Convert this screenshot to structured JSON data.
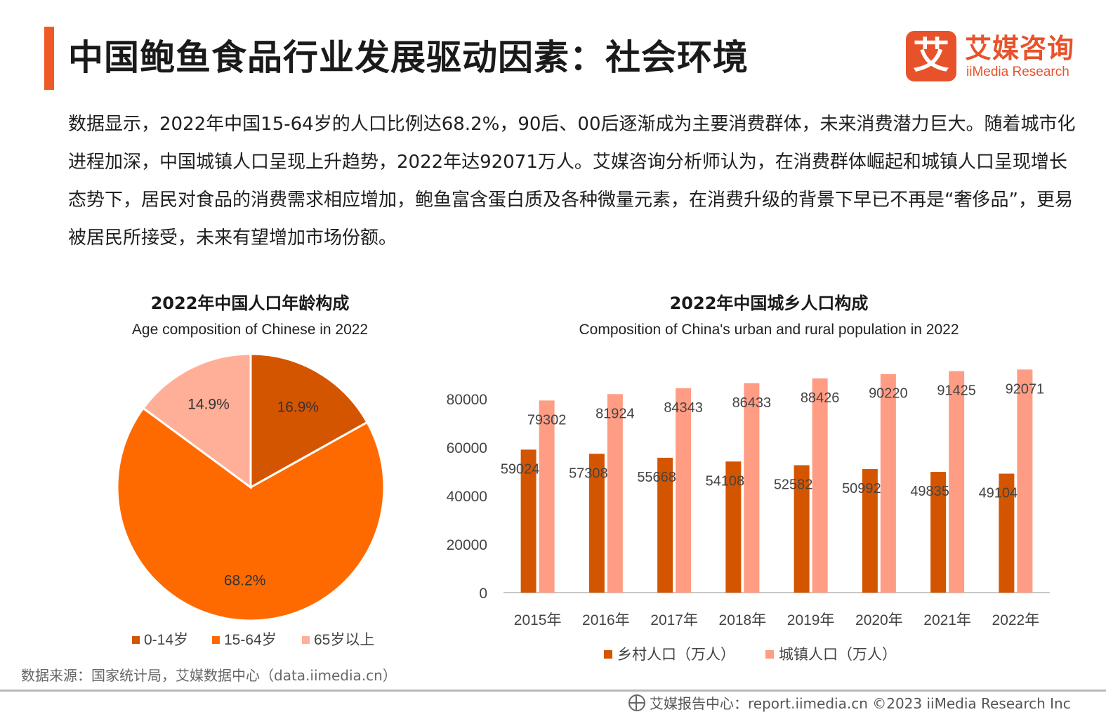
{
  "page": {
    "title": "中国鲍鱼食品行业发展驱动因素：社会环境",
    "logo_mark": "艾",
    "logo_cn": "艾媒咨询",
    "logo_en": "iiMedia Research",
    "body_text": "数据显示，2022年中国15-64岁的人口比例达68.2%，90后、00后逐渐成为主要消费群体，未来消费潜力巨大。随着城市化进程加深，中国城镇人口呈现上升趋势，2022年达92071万人。艾媒咨询分析师认为，在消费群体崛起和城镇人口呈现增长态势下，居民对食品的消费需求相应增加，鲍鱼富含蛋白质及各种微量元素，在消费升级的背景下早已不再是“奢侈品”，更易被居民所接受，未来有望增加市场份额。",
    "source": "数据来源：国家统计局，艾媒数据中心（data.iimedia.cn）",
    "footer": "艾媒报告中心：report.iimedia.cn    ©2023  iiMedia Research  Inc"
  },
  "chart_data": [
    {
      "type": "pie",
      "title": "2022年中国人口年龄构成",
      "subtitle": "Age composition of Chinese in 2022",
      "categories": [
        "0-14岁",
        "15-64岁",
        "65岁以上"
      ],
      "values": [
        16.9,
        68.2,
        14.9
      ],
      "labels": [
        "16.9%",
        "68.2%",
        "14.9%"
      ],
      "colors": [
        "#d45500",
        "#ff6a00",
        "#ffaf98"
      ],
      "legend": "bottom"
    },
    {
      "type": "bar",
      "title": "2022年中国城乡人口构成",
      "subtitle": "Composition of China's urban and rural population in 2022",
      "categories": [
        "2015年",
        "2016年",
        "2017年",
        "2018年",
        "2019年",
        "2020年",
        "2021年",
        "2022年"
      ],
      "series": [
        {
          "name": "乡村人口（万人）",
          "values": [
            59024,
            57308,
            55668,
            54108,
            52582,
            50992,
            49835,
            49104
          ],
          "color": "#d45500"
        },
        {
          "name": "城镇人口（万人）",
          "values": [
            79302,
            81924,
            84343,
            86433,
            88426,
            90220,
            91425,
            92071
          ],
          "color": "#ff9c84"
        }
      ],
      "yticks": [
        0,
        20000,
        40000,
        60000,
        80000
      ],
      "ylim": [
        0,
        91000
      ],
      "grid": false,
      "legend": "bottom"
    }
  ]
}
